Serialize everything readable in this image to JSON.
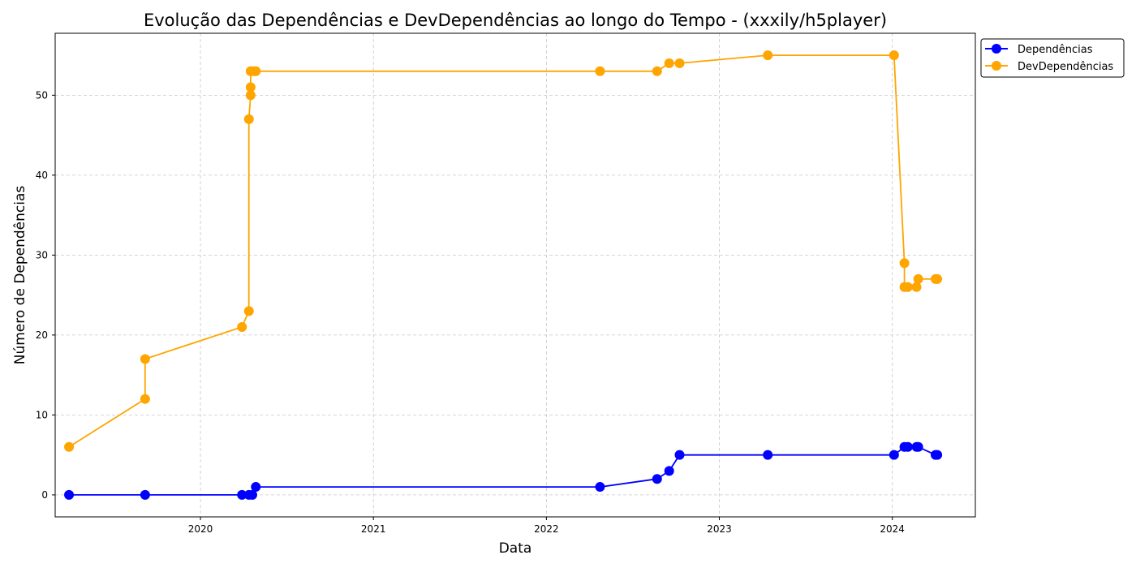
{
  "chart_data": {
    "type": "line",
    "title": "Evolução das Dependências e DevDependências ao longo do Tempo - (xxxily/h5player)",
    "xlabel": "Data",
    "ylabel": "Número de Dependências",
    "x_ticks": [
      "2020",
      "2021",
      "2022",
      "2023",
      "2024"
    ],
    "y_ticks": [
      "0",
      "10",
      "20",
      "30",
      "40",
      "50"
    ],
    "xlim": [
      2019.16,
      2024.48
    ],
    "ylim": [
      -2.75,
      57.75
    ],
    "grid": true,
    "legend_position": "outside-top-right",
    "series": [
      {
        "name": "Dependências",
        "color": "#0000ff",
        "points": [
          [
            2019.24,
            0
          ],
          [
            2019.68,
            0
          ],
          [
            2020.24,
            0
          ],
          [
            2020.28,
            0
          ],
          [
            2020.3,
            0
          ],
          [
            2020.32,
            1
          ],
          [
            2022.31,
            1
          ],
          [
            2022.64,
            2
          ],
          [
            2022.71,
            3
          ],
          [
            2022.77,
            5
          ],
          [
            2023.28,
            5
          ],
          [
            2024.01,
            5
          ],
          [
            2024.07,
            6
          ],
          [
            2024.09,
            6
          ],
          [
            2024.14,
            6
          ],
          [
            2024.15,
            6
          ],
          [
            2024.25,
            5
          ],
          [
            2024.26,
            5
          ]
        ]
      },
      {
        "name": "DevDependências",
        "color": "#ffa500",
        "points": [
          [
            2019.24,
            6
          ],
          [
            2019.68,
            12
          ],
          [
            2019.68,
            17
          ],
          [
            2020.24,
            21
          ],
          [
            2020.28,
            23
          ],
          [
            2020.28,
            47
          ],
          [
            2020.29,
            50
          ],
          [
            2020.29,
            51
          ],
          [
            2020.29,
            53
          ],
          [
            2020.31,
            53
          ],
          [
            2020.32,
            53
          ],
          [
            2022.31,
            53
          ],
          [
            2022.64,
            53
          ],
          [
            2022.71,
            54
          ],
          [
            2022.77,
            54
          ],
          [
            2023.28,
            55
          ],
          [
            2024.01,
            55
          ],
          [
            2024.07,
            29
          ],
          [
            2024.07,
            26
          ],
          [
            2024.09,
            26
          ],
          [
            2024.14,
            26
          ],
          [
            2024.15,
            27
          ],
          [
            2024.25,
            27
          ],
          [
            2024.26,
            27
          ]
        ]
      }
    ]
  }
}
